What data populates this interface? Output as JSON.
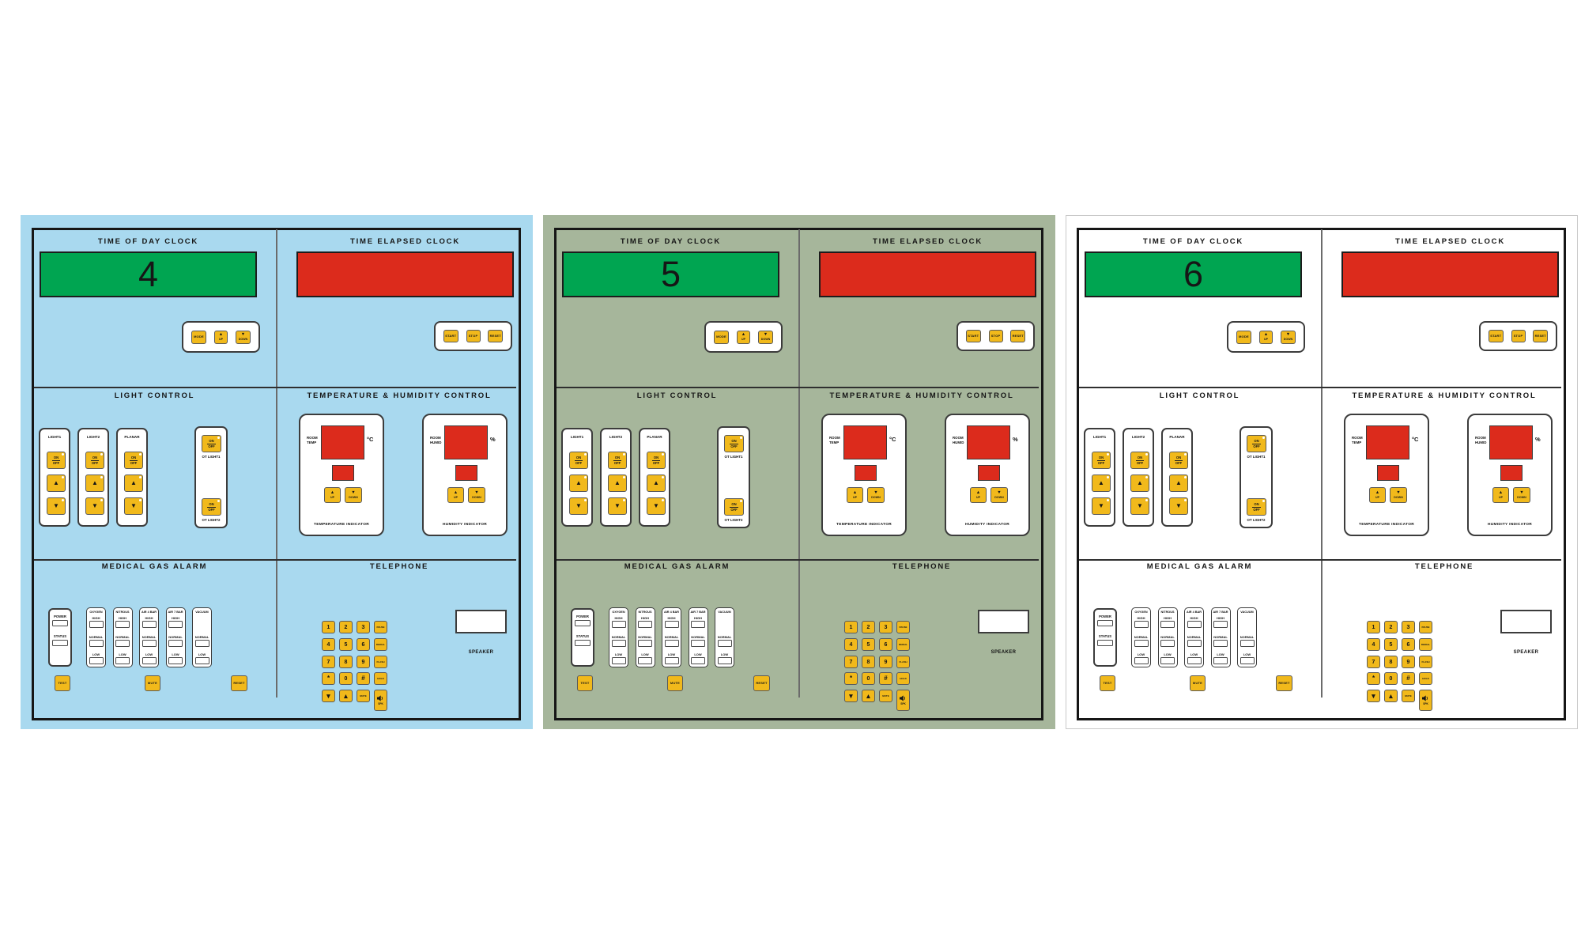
{
  "panels": [
    {
      "name": "ot-control-panel-blue",
      "clock_value": "4",
      "bg": "#a9d9ef",
      "frame": "#a9d9ef"
    },
    {
      "name": "ot-control-panel-green",
      "clock_value": "5",
      "bg": "#a6b69b",
      "frame": "#a6b69b"
    },
    {
      "name": "ot-control-panel-white",
      "clock_value": "6",
      "bg": "#ffffff",
      "frame": "#c9c9c9"
    }
  ],
  "colors": {
    "display_green": "#00a551",
    "display_red": "#dc2b1c",
    "button_yellow": "#f1b91b"
  },
  "icons": {
    "up": "▲",
    "down": "▼"
  },
  "clock": {
    "tod_title": "TIME OF DAY CLOCK",
    "elapsed_title": "TIME ELAPSED CLOCK",
    "mode": "MODE",
    "up": "UP",
    "down": "DOWN",
    "start": "START",
    "stop": "STOP",
    "reset": "RESET"
  },
  "light_control": {
    "title": "LIGHT CONTROL",
    "on": "ON",
    "off": "OFF",
    "columns": [
      {
        "label": "LIGHT1"
      },
      {
        "label": "LIGHT2"
      },
      {
        "label": "PLANAR"
      }
    ],
    "ot1": "OT LIGHT1",
    "ot2": "OT LIGHT2"
  },
  "temp_humidity": {
    "title": "TEMPERATURE & HUMIDITY CONTROL",
    "up": "UP",
    "down": "DOWN",
    "indicators": [
      {
        "label_line1": "ROOM",
        "label_line2": "TEMP",
        "unit": "°C",
        "caption": "TEMPERATURE INDICATOR"
      },
      {
        "label_line1": "ROOM",
        "label_line2": "HUMID",
        "unit": "%",
        "caption": "HUMIDITY INDICATOR"
      }
    ]
  },
  "gas_alarm": {
    "title": "MEDICAL GAS ALARM",
    "power": {
      "row1": "POWER",
      "row2": "STATUS"
    },
    "columns": [
      {
        "name": "OXYGEN",
        "high": "HIGH",
        "normal": "NORMAL",
        "low": "LOW"
      },
      {
        "name": "NITROUS",
        "high": "HIGH",
        "normal": "NORMAL",
        "low": "LOW"
      },
      {
        "name": "AIR 4 BAR",
        "high": "HIGH",
        "normal": "NORMAL",
        "low": "LOW"
      },
      {
        "name": "AIR 7 BAR",
        "high": "HIGH",
        "normal": "NORMAL",
        "low": "LOW"
      },
      {
        "name": "VACUUM",
        "normal": "NORMAL",
        "low": "LOW"
      }
    ],
    "test": "TEST",
    "mute": "MUTE",
    "reset": "RESET"
  },
  "telephone": {
    "title": "TELEPHONE",
    "speaker": "SPEAKER",
    "keys": [
      [
        {
          "t": "1",
          "k": "digit",
          "n": "key-1"
        },
        {
          "t": "2",
          "k": "digit",
          "n": "key-2"
        },
        {
          "t": "3",
          "k": "digit",
          "n": "key-3"
        },
        {
          "t": "PAUSE",
          "k": "small",
          "n": "key-pause"
        }
      ],
      [
        {
          "t": "4",
          "k": "digit",
          "n": "key-4"
        },
        {
          "t": "5",
          "k": "digit",
          "n": "key-5"
        },
        {
          "t": "6",
          "k": "digit",
          "n": "key-6"
        },
        {
          "t": "REDIAL",
          "k": "small",
          "n": "key-redial"
        }
      ],
      [
        {
          "t": "7",
          "k": "digit",
          "n": "key-7"
        },
        {
          "t": "8",
          "k": "digit",
          "n": "key-8"
        },
        {
          "t": "9",
          "k": "digit",
          "n": "key-9"
        },
        {
          "t": "FLASH",
          "k": "small",
          "n": "key-flash"
        }
      ],
      [
        {
          "t": "*",
          "k": "sym",
          "n": "key-star"
        },
        {
          "t": "0",
          "k": "digit",
          "n": "key-0"
        },
        {
          "t": "#",
          "k": "sym",
          "n": "key-hash"
        },
        {
          "t": "HOLD",
          "k": "small",
          "n": "key-hold"
        }
      ],
      [
        {
          "t": "▼",
          "k": "arrow",
          "n": "key-scroll-down"
        },
        {
          "t": "▲",
          "k": "arrow",
          "n": "key-scroll-up"
        },
        {
          "t": "MUTE",
          "k": "small",
          "n": "key-mute"
        },
        {
          "t": "SPK",
          "k": "speaker",
          "n": "key-speaker"
        }
      ]
    ]
  }
}
